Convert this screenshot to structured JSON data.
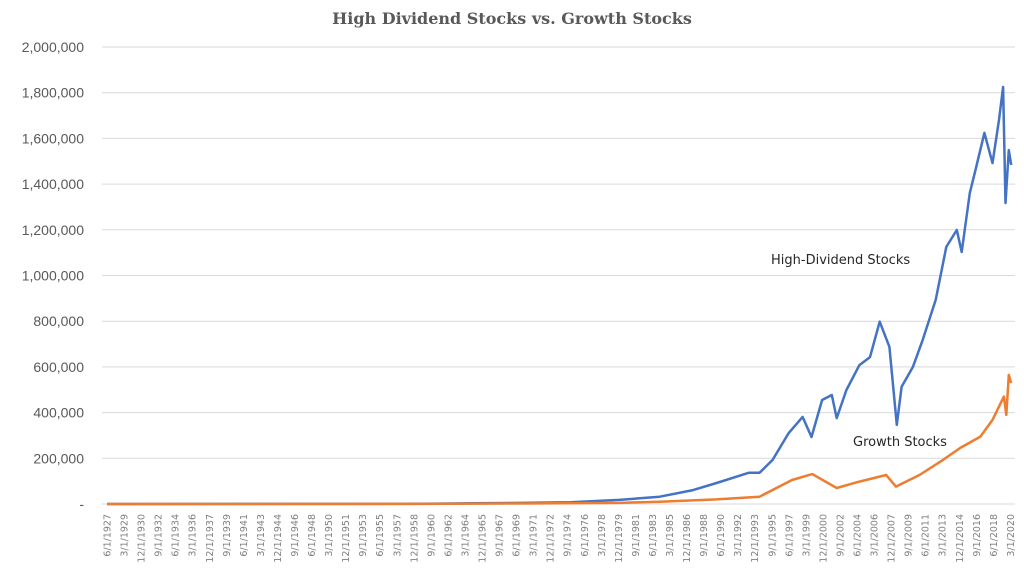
{
  "chart_data": {
    "type": "line",
    "title": "High Dividend Stocks vs. Growth Stocks",
    "xlabel": "",
    "ylabel": "",
    "ylim": [
      0,
      2000000
    ],
    "grid": true,
    "legend": "none",
    "y_ticks": [
      {
        "value": 0,
        "label": "-"
      },
      {
        "value": 200000,
        "label": "200,000"
      },
      {
        "value": 400000,
        "label": "400,000"
      },
      {
        "value": 600000,
        "label": "600,000"
      },
      {
        "value": 800000,
        "label": "800,000"
      },
      {
        "value": 1000000,
        "label": "1,000,000"
      },
      {
        "value": 1200000,
        "label": "1,200,000"
      },
      {
        "value": 1400000,
        "label": "1,400,000"
      },
      {
        "value": 1600000,
        "label": "1,600,000"
      },
      {
        "value": 1800000,
        "label": "1,800,000"
      },
      {
        "value": 2000000,
        "label": "2,000,000"
      }
    ],
    "x_tick_labels": [
      "6/1/1927",
      "3/1/1929",
      "12/1/1930",
      "9/1/1932",
      "6/1/1934",
      "3/1/1936",
      "12/1/1937",
      "9/1/1939",
      "6/1/1941",
      "3/1/1943",
      "12/1/1944",
      "9/1/1946",
      "6/1/1948",
      "3/1/1950",
      "12/1/1951",
      "9/1/1953",
      "6/1/1955",
      "3/1/1957",
      "12/1/1958",
      "9/1/1960",
      "6/1/1962",
      "3/1/1964",
      "12/1/1965",
      "9/1/1967",
      "6/1/1969",
      "3/1/1971",
      "12/1/1972",
      "9/1/1974",
      "6/1/1976",
      "3/1/1978",
      "12/1/1979",
      "9/1/1981",
      "6/1/1983",
      "3/1/1985",
      "12/1/1986",
      "9/1/1988",
      "6/1/1990",
      "3/1/1992",
      "12/1/1993",
      "9/1/1995",
      "6/1/1997",
      "3/1/1999",
      "12/1/2000",
      "9/1/2002",
      "6/1/2004",
      "3/1/2006",
      "12/1/2007",
      "9/1/2009",
      "6/1/2011",
      "3/1/2013",
      "12/1/2014",
      "9/1/2016",
      "6/1/2018",
      "3/1/2020"
    ],
    "series": [
      {
        "name": "High-Dividend Stocks",
        "color": "#4472c4",
        "points": [
          [
            "1927-06",
            0
          ],
          [
            "1960-01",
            1000
          ],
          [
            "1965-01",
            3000
          ],
          [
            "1970-01",
            5000
          ],
          [
            "1975-01",
            8000
          ],
          [
            "1980-01",
            18000
          ],
          [
            "1984-03",
            32000
          ],
          [
            "1987-08",
            61000
          ],
          [
            "1990-01",
            92000
          ],
          [
            "1993-05",
            137000
          ],
          [
            "1994-06",
            137000
          ],
          [
            "1995-10",
            193000
          ],
          [
            "1997-06",
            311000
          ],
          [
            "1998-11",
            381000
          ],
          [
            "1999-10",
            293000
          ],
          [
            "2000-11",
            455000
          ],
          [
            "2001-11",
            477000
          ],
          [
            "2002-05",
            376000
          ],
          [
            "2003-05",
            499000
          ],
          [
            "2004-09",
            608000
          ],
          [
            "2005-10",
            643000
          ],
          [
            "2006-10",
            798000
          ],
          [
            "2007-10",
            688000
          ],
          [
            "2008-07",
            346000
          ],
          [
            "2009-01",
            513000
          ],
          [
            "2010-03",
            601000
          ],
          [
            "2011-03",
            718000
          ],
          [
            "2012-07",
            893000
          ],
          [
            "2013-08",
            1125000
          ],
          [
            "2014-09",
            1199000
          ],
          [
            "2015-03",
            1103000
          ],
          [
            "2016-01",
            1361000
          ],
          [
            "2016-08",
            1462000
          ],
          [
            "2017-07",
            1624000
          ],
          [
            "2018-05",
            1492000
          ],
          [
            "2019-01",
            1681000
          ],
          [
            "2019-06",
            1825000
          ],
          [
            "2019-09",
            1317000
          ],
          [
            "2020-01",
            1549000
          ],
          [
            "2020-04",
            1484000
          ]
        ]
      },
      {
        "name": "Growth Stocks",
        "color": "#ed7d31",
        "points": [
          [
            "1927-06",
            0
          ],
          [
            "1960-01",
            500
          ],
          [
            "1970-01",
            2000
          ],
          [
            "1980-01",
            5000
          ],
          [
            "1984-03",
            10000
          ],
          [
            "1990-01",
            20000
          ],
          [
            "1994-06",
            32000
          ],
          [
            "1997-10",
            105000
          ],
          [
            "1999-11",
            131000
          ],
          [
            "2002-05",
            70000
          ],
          [
            "2004-09",
            98000
          ],
          [
            "2007-06",
            127000
          ],
          [
            "2008-06",
            76000
          ],
          [
            "2010-11",
            127000
          ],
          [
            "2013-04",
            193000
          ],
          [
            "2015-01",
            245000
          ],
          [
            "2017-02",
            295000
          ],
          [
            "2018-05",
            368000
          ],
          [
            "2019-07",
            470000
          ],
          [
            "2019-10",
            390000
          ],
          [
            "2020-01",
            565000
          ],
          [
            "2020-04",
            530000
          ]
        ]
      }
    ]
  }
}
